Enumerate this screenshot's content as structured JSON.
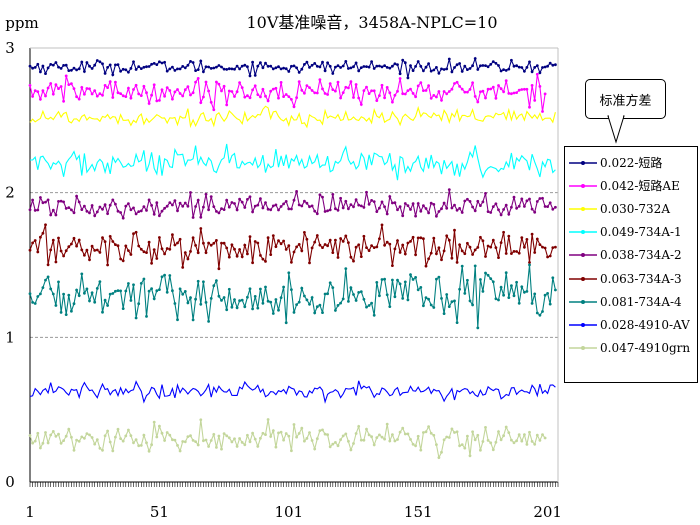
{
  "chart_data": {
    "type": "line",
    "title": "10V基准噪音，3458A-NPLC=10",
    "ylabel": "ppm",
    "xlabel": "",
    "ylim": [
      0,
      3
    ],
    "xlim": [
      1,
      205
    ],
    "y_ticks": [
      "0",
      "1",
      "2",
      "3"
    ],
    "x_ticks": [
      "1",
      "51",
      "101",
      "151",
      "201"
    ],
    "grid": "horizontal dashed",
    "legend": "right",
    "series": [
      {
        "name": "0.022-短路",
        "color": "#000080",
        "marker": true,
        "mean": 2.87,
        "std": 0.022,
        "n": 204
      },
      {
        "name": "0.042-短路AE",
        "color": "#FF00FF",
        "marker": true,
        "mean": 2.7,
        "std": 0.042,
        "n": 200
      },
      {
        "name": "0.030-732A",
        "color": "#FFFF00",
        "marker": false,
        "mean": 2.52,
        "std": 0.03,
        "n": 204
      },
      {
        "name": "0.049-734A-1",
        "color": "#00FFFF",
        "marker": false,
        "mean": 2.2,
        "std": 0.049,
        "n": 204
      },
      {
        "name": "0.038-734A-2",
        "color": "#800080",
        "marker": true,
        "mean": 1.91,
        "std": 0.038,
        "n": 204
      },
      {
        "name": "0.063-734A-3",
        "color": "#800000",
        "marker": true,
        "mean": 1.62,
        "std": 0.063,
        "n": 204
      },
      {
        "name": "0.081-734A-4",
        "color": "#008080",
        "marker": true,
        "mean": 1.29,
        "std": 0.081,
        "n": 204
      },
      {
        "name": "0.028-4910-AV",
        "color": "#0000FF",
        "marker": false,
        "mean": 0.63,
        "std": 0.028,
        "n": 204
      },
      {
        "name": "0.047-4910grn",
        "color": "#C3D69B",
        "marker": true,
        "mean": 0.3,
        "std": 0.047,
        "n": 200
      }
    ]
  },
  "callout": {
    "text": "标准方差"
  }
}
